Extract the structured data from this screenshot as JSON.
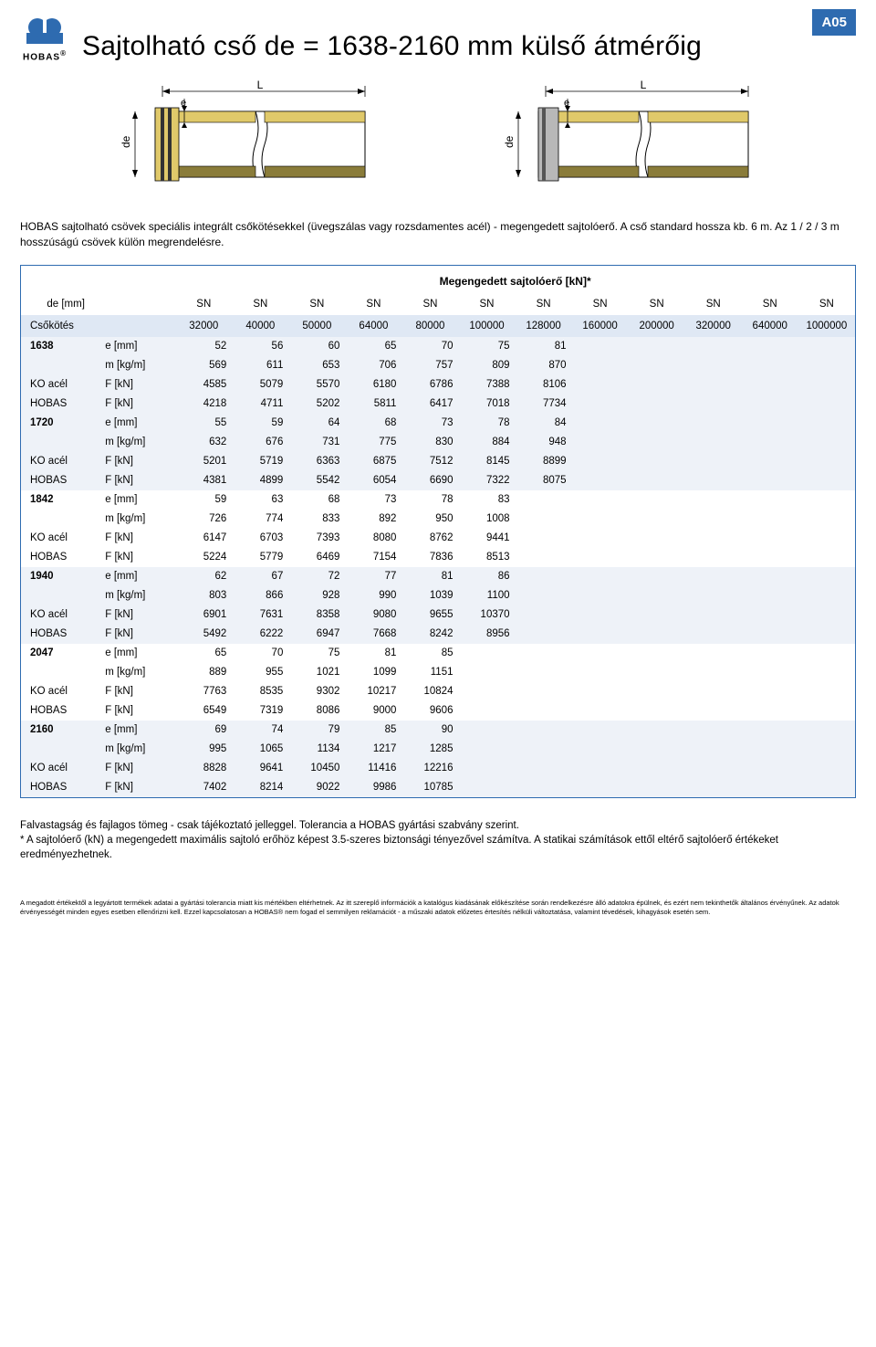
{
  "badge": "A05",
  "logo": {
    "brand": "HOBAS",
    "reg": "®",
    "color": "#2e6bb0"
  },
  "title": "Sajtolható cső de = 1638-2160 mm külső átmérőig",
  "diagram_labels": {
    "L": "L",
    "e": "e",
    "de": "de"
  },
  "intro": "HOBAS sajtolható csövek speciális integrált csőkötésekkel (üvegszálas vagy rozsdamentes acél) - megengedett sajtolóerő. A cső standard hossza kb. 6 m. Az 1 / 2 / 3 m  hosszúságú csövek külön megrendelésre.",
  "table": {
    "megahead": "Megengedett sajtolóerő [kN]*",
    "row1_label": "de [mm]",
    "row1_cols": [
      "SN",
      "SN",
      "SN",
      "SN",
      "SN",
      "SN",
      "SN",
      "SN",
      "SN",
      "SN",
      "SN",
      "SN"
    ],
    "row2_label": "Csőkötés",
    "row2_cols": [
      "32000",
      "40000",
      "50000",
      "64000",
      "80000",
      "100000",
      "128000",
      "160000",
      "200000",
      "320000",
      "640000",
      "1000000"
    ],
    "unit_e": "e [mm]",
    "unit_m": "m [kg/m]",
    "unit_F": "F [kN]",
    "label_KO": "KO acél",
    "label_HOBAS": "HOBAS",
    "groups": [
      {
        "de": "1638",
        "shade": true,
        "e": [
          "52",
          "56",
          "60",
          "65",
          "70",
          "75",
          "81"
        ],
        "m": [
          "569",
          "611",
          "653",
          "706",
          "757",
          "809",
          "870"
        ],
        "ko": [
          "4585",
          "5079",
          "5570",
          "6180",
          "6786",
          "7388",
          "8106"
        ],
        "hobas": [
          "4218",
          "4711",
          "5202",
          "5811",
          "6417",
          "7018",
          "7734"
        ]
      },
      {
        "de": "1720",
        "shade": true,
        "e": [
          "55",
          "59",
          "64",
          "68",
          "73",
          "78",
          "84"
        ],
        "m": [
          "632",
          "676",
          "731",
          "775",
          "830",
          "884",
          "948"
        ],
        "ko": [
          "5201",
          "5719",
          "6363",
          "6875",
          "7512",
          "8145",
          "8899"
        ],
        "hobas": [
          "4381",
          "4899",
          "5542",
          "6054",
          "6690",
          "7322",
          "8075"
        ]
      },
      {
        "de": "1842",
        "shade": false,
        "e": [
          "59",
          "63",
          "68",
          "73",
          "78",
          "83"
        ],
        "m": [
          "726",
          "774",
          "833",
          "892",
          "950",
          "1008"
        ],
        "ko": [
          "6147",
          "6703",
          "7393",
          "8080",
          "8762",
          "9441"
        ],
        "hobas": [
          "5224",
          "5779",
          "6469",
          "7154",
          "7836",
          "8513"
        ]
      },
      {
        "de": "1940",
        "shade": true,
        "e": [
          "62",
          "67",
          "72",
          "77",
          "81",
          "86"
        ],
        "m": [
          "803",
          "866",
          "928",
          "990",
          "1039",
          "1100"
        ],
        "ko": [
          "6901",
          "7631",
          "8358",
          "9080",
          "9655",
          "10370"
        ],
        "hobas": [
          "5492",
          "6222",
          "6947",
          "7668",
          "8242",
          "8956"
        ]
      },
      {
        "de": "2047",
        "shade": false,
        "e": [
          "65",
          "70",
          "75",
          "81",
          "85"
        ],
        "m": [
          "889",
          "955",
          "1021",
          "1099",
          "1151"
        ],
        "ko": [
          "7763",
          "8535",
          "9302",
          "10217",
          "10824"
        ],
        "hobas": [
          "6549",
          "7319",
          "8086",
          "9000",
          "9606"
        ]
      },
      {
        "de": "2160",
        "shade": true,
        "e": [
          "69",
          "74",
          "79",
          "85",
          "90"
        ],
        "m": [
          "995",
          "1065",
          "1134",
          "1217",
          "1285"
        ],
        "ko": [
          "8828",
          "9641",
          "10450",
          "11416",
          "12216"
        ],
        "hobas": [
          "7402",
          "8214",
          "9022",
          "9986",
          "10785"
        ]
      }
    ]
  },
  "footnote1": "Falvastagság és fajlagos tömeg - csak tájékoztató jelleggel. Tolerancia a HOBAS gyártási szabvány szerint.",
  "footnote2": "* A sajtolóerő (kN) a megengedett maximális sajtoló erőhöz képest 3.5-szeres biztonsági tényezővel számítva. A statikai számítások ettől eltérő sajtolóerő értékeket eredményezhetnek.",
  "legal": "A megadott értékektől a legyártott termékek adatai a gyártási tolerancia miatt kis mértékben eltérhetnek. Az itt szereplő információk a katalógus kiadásának előkészítése során rendelkezésre álló adatokra épülnek, és ezért nem tekinthetők általános érvényűnek. Az adatok érvényességét minden egyes esetben ellenőrizni kell. Ezzel kapcsolatosan a HOBAS® nem fogad el semmilyen reklamációt - a műszaki adatok előzetes értesítés nélküli változtatása, valamint tévedések, kihagyások esetén sem.",
  "colors": {
    "accent": "#2e6bb0",
    "row_shade": "#eef2f8",
    "head_shade": "#dfe8f4",
    "pipe_yellow": "#e0c96a",
    "pipe_olive": "#8a7c3a",
    "pipe_gray": "#7d7d7d"
  }
}
